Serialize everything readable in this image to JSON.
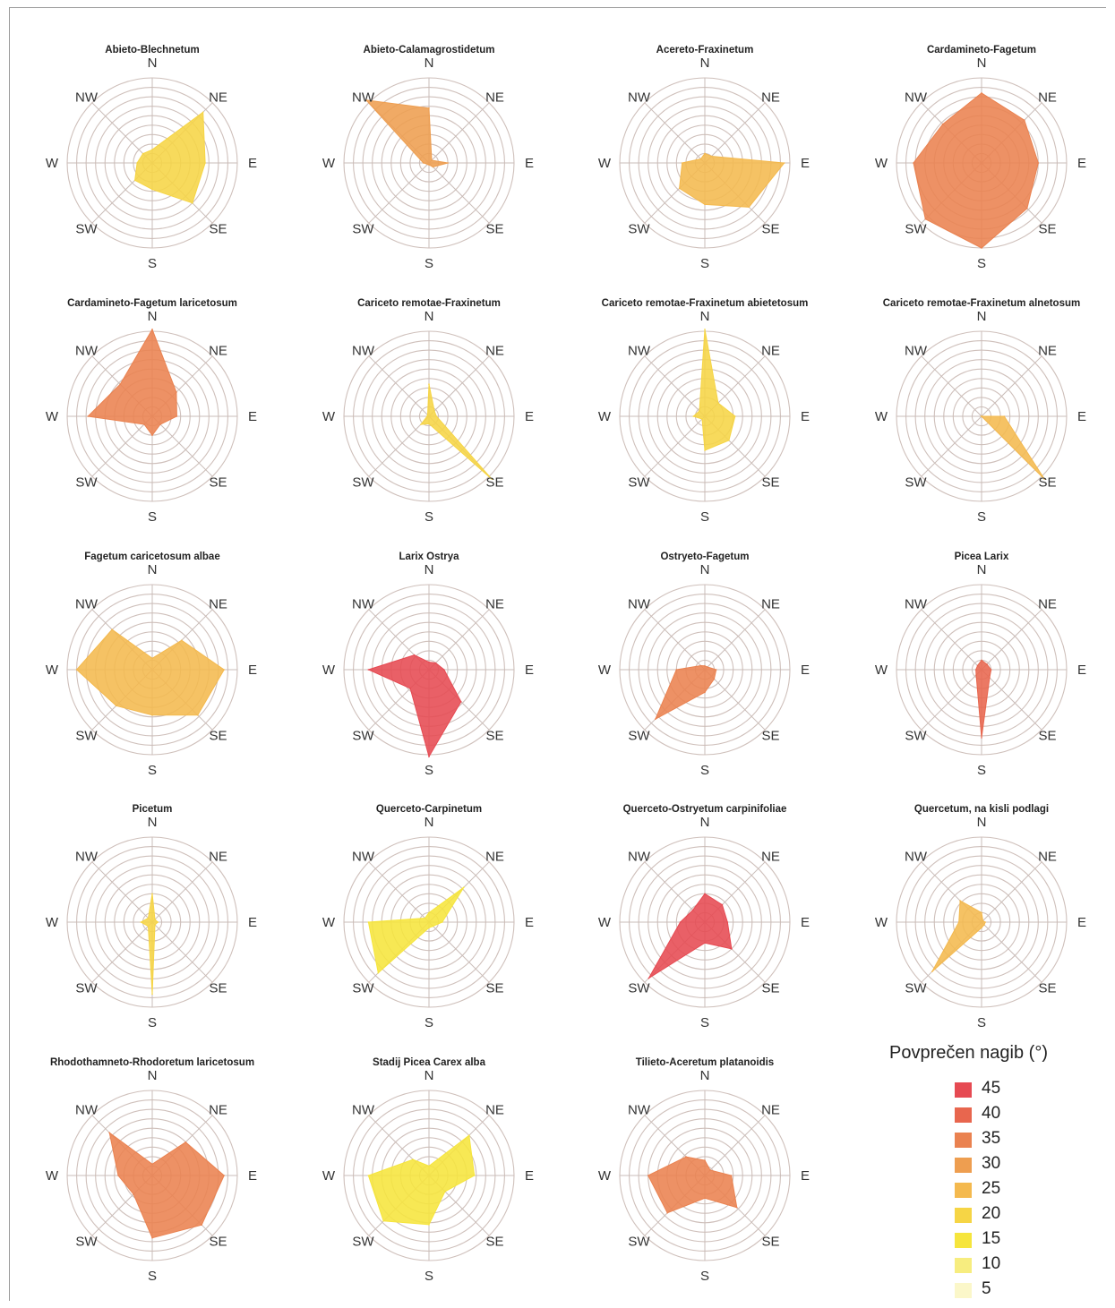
{
  "chart_data": {
    "type": "radar",
    "directions": [
      "N",
      "NE",
      "E",
      "SE",
      "S",
      "SW",
      "W",
      "NW"
    ],
    "radial_max": 45,
    "rings": [
      5,
      10,
      15,
      20,
      25,
      30,
      35,
      40,
      45
    ],
    "charts": [
      {
        "title": "Abieto-Blechnetum",
        "values": [
          7,
          38,
          28,
          30,
          14,
          13,
          8,
          7
        ],
        "mean_slope": 20
      },
      {
        "title": "Abieto-Calamagrostidetum",
        "values": [
          29,
          2,
          10,
          3,
          1,
          1,
          3,
          47
        ],
        "mean_slope": 30
      },
      {
        "title": "Acereto-Fraxinetum",
        "values": [
          5,
          5,
          42,
          33,
          22,
          19,
          12,
          3
        ],
        "mean_slope": 25
      },
      {
        "title": "Cardamineto-Fagetum",
        "values": [
          37,
          32,
          30,
          34,
          45,
          42,
          36,
          29
        ],
        "mean_slope": 35
      },
      {
        "title": "Cardamineto-Fagetum laricetosum",
        "values": [
          46,
          18,
          13,
          6,
          10,
          6,
          34,
          24
        ],
        "mean_slope": 35
      },
      {
        "title": "Cariceto remotae-Fraxinetum",
        "values": [
          17,
          4,
          4,
          47,
          4,
          6,
          1,
          1
        ],
        "mean_slope": 20
      },
      {
        "title": "Cariceto remotae-Fraxinetum abietetosum",
        "values": [
          46,
          10,
          16,
          18,
          18,
          2,
          6,
          4
        ],
        "mean_slope": 20
      },
      {
        "title": "Cariceto remotae-Fraxinetum alnetosum",
        "values": [
          0,
          0,
          12,
          47,
          0,
          0,
          0,
          0
        ],
        "mean_slope": 25
      },
      {
        "title": "Fagetum caricetosum albae",
        "values": [
          6,
          22,
          38,
          34,
          24,
          27,
          40,
          30
        ],
        "mean_slope": 25
      },
      {
        "title": "Larix Ostrya",
        "values": [
          4,
          5,
          8,
          24,
          46,
          14,
          32,
          11
        ],
        "mean_slope": 45
      },
      {
        "title": "Ostryeto-Fagetum",
        "values": [
          2,
          2,
          6,
          7,
          12,
          37,
          15,
          3
        ],
        "mean_slope": 35
      },
      {
        "title": "Picea Larix",
        "values": [
          5,
          4,
          5,
          6,
          36,
          4,
          3,
          3
        ],
        "mean_slope": 40
      },
      {
        "title": "Picetum",
        "values": [
          15,
          2,
          3,
          2,
          38,
          3,
          6,
          3
        ],
        "mean_slope": 20
      },
      {
        "title": "Querceto-Carpinetum",
        "values": [
          5,
          26,
          7,
          3,
          3,
          38,
          32,
          3
        ],
        "mean_slope": 15
      },
      {
        "title": "Querceto-Ostryetum carpinifoliae",
        "values": [
          15,
          13,
          12,
          20,
          11,
          42,
          13,
          9
        ],
        "mean_slope": 45
      },
      {
        "title": "Quercetum, na kisli podlagi",
        "values": [
          5,
          1,
          2,
          2,
          3,
          37,
          12,
          16
        ],
        "mean_slope": 25
      },
      {
        "title": "Rhodothamneto-Rhodoretum laricetosum",
        "values": [
          6,
          25,
          38,
          37,
          33,
          14,
          18,
          32
        ],
        "mean_slope": 35
      },
      {
        "title": "Stadij Picea Carex alba",
        "values": [
          5,
          30,
          24,
          12,
          26,
          34,
          32,
          12
        ],
        "mean_slope": 15
      },
      {
        "title": "Tilieto-Aceretum platanoidis",
        "values": [
          8,
          4,
          14,
          24,
          12,
          28,
          30,
          14
        ],
        "mean_slope": 35
      }
    ],
    "legend": {
      "title": "Povprečen nagib (°)",
      "items": [
        {
          "label": "45",
          "color": "#e64a52"
        },
        {
          "label": "40",
          "color": "#e8664e"
        },
        {
          "label": "35",
          "color": "#ea8250"
        },
        {
          "label": "30",
          "color": "#ee9e50"
        },
        {
          "label": "25",
          "color": "#f4b94e"
        },
        {
          "label": "20",
          "color": "#f6d545"
        },
        {
          "label": "15",
          "color": "#f6e53c"
        },
        {
          "label": "10",
          "color": "#f7ed7f"
        },
        {
          "label": "5",
          "color": "#fbf7c9"
        }
      ]
    }
  }
}
